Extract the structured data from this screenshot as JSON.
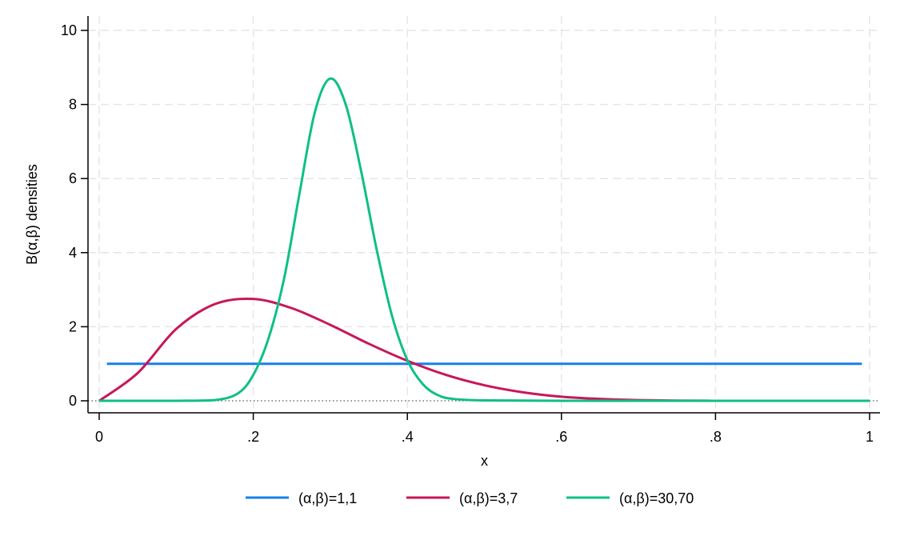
{
  "chart_data": {
    "type": "line",
    "title": "",
    "xlabel": "x",
    "ylabel": "B(α,β) densities",
    "xlim": [
      0,
      1
    ],
    "ylim": [
      0,
      10
    ],
    "x_ticks": [
      0,
      0.2,
      0.4,
      0.6,
      0.8,
      1
    ],
    "x_tick_labels": [
      "0",
      ".2",
      ".4",
      ".6",
      ".8",
      "1"
    ],
    "y_ticks": [
      0,
      2,
      4,
      6,
      8,
      10
    ],
    "y_tick_labels": [
      "0",
      "2",
      "4",
      "6",
      "8",
      "10"
    ],
    "grid": true,
    "legend_position": "bottom",
    "reference_line_y": 0,
    "series": [
      {
        "name": "(α,β)=1,1",
        "color": "#1a7fe8",
        "x": [
          0.01,
          0.99
        ],
        "y": [
          1,
          1
        ]
      },
      {
        "name": "(α,β)=3,7",
        "color": "#c8175a",
        "x": [
          0,
          0.05,
          0.1,
          0.15,
          0.2,
          0.25,
          0.3,
          0.35,
          0.4,
          0.45,
          0.5,
          0.55,
          0.6,
          0.65,
          0.7,
          0.75,
          0.8,
          0.85,
          0.9,
          0.95,
          1
        ],
        "y": [
          0,
          0.75,
          1.94,
          2.61,
          2.75,
          2.5,
          2.05,
          1.54,
          1.08,
          0.7,
          0.42,
          0.23,
          0.11,
          0.05,
          0.02,
          0.006,
          0.001,
          0.0002,
          0,
          0,
          0
        ]
      },
      {
        "name": "(α,β)=30,70",
        "color": "#0fbf87",
        "x": [
          0,
          0.1,
          0.15,
          0.18,
          0.2,
          0.22,
          0.24,
          0.26,
          0.28,
          0.3,
          0.32,
          0.34,
          0.36,
          0.38,
          0.4,
          0.42,
          0.44,
          0.46,
          0.5,
          0.6,
          0.8,
          1
        ],
        "y": [
          0,
          0,
          0.02,
          0.2,
          0.7,
          1.7,
          3.3,
          5.6,
          7.8,
          8.7,
          8.0,
          6.2,
          4.1,
          2.3,
          1.1,
          0.45,
          0.15,
          0.05,
          0.01,
          0,
          0,
          0
        ]
      }
    ]
  }
}
